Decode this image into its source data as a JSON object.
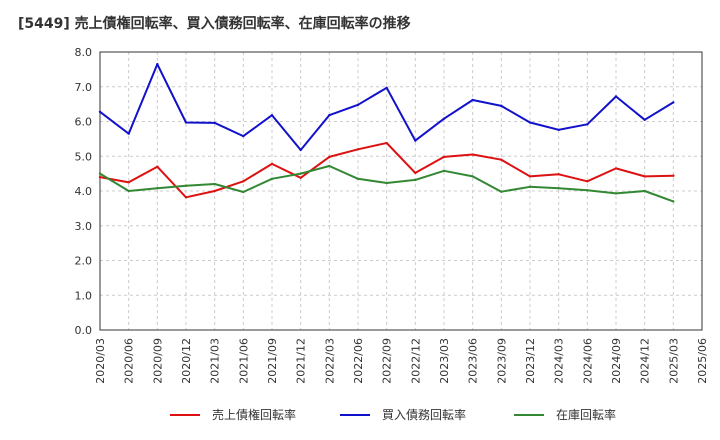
{
  "chart_data": {
    "type": "line",
    "title": "[5449]  売上債権回転率、買入債務回転率、在庫回転率の推移",
    "xlabel": "",
    "ylabel": "",
    "ylim": [
      0,
      8
    ],
    "yticks": [
      "0.0",
      "1.0",
      "2.0",
      "3.0",
      "4.0",
      "5.0",
      "6.0",
      "7.0",
      "8.0"
    ],
    "grid": true,
    "legend_position": "bottom",
    "x": [
      "2020/03",
      "2020/06",
      "2020/09",
      "2020/12",
      "2021/03",
      "2021/06",
      "2021/09",
      "2021/12",
      "2022/03",
      "2022/06",
      "2022/09",
      "2022/12",
      "2023/03",
      "2023/06",
      "2023/09",
      "2023/12",
      "2024/03",
      "2024/06",
      "2024/09",
      "2024/12",
      "2025/03",
      "2025/06"
    ],
    "series": [
      {
        "name": "売上債権回転率",
        "color": "#dd1111",
        "values": [
          4.4,
          4.25,
          4.7,
          3.82,
          4.0,
          4.28,
          4.78,
          4.38,
          4.98,
          5.2,
          5.38,
          4.52,
          4.98,
          5.05,
          4.9,
          4.42,
          4.48,
          4.28,
          4.65,
          4.42,
          4.44,
          null
        ]
      },
      {
        "name": "買入債務回転率",
        "color": "#1111cc",
        "values": [
          6.28,
          5.65,
          7.65,
          5.97,
          5.96,
          5.58,
          6.18,
          5.18,
          6.18,
          6.48,
          6.97,
          5.45,
          6.08,
          6.62,
          6.45,
          5.97,
          5.76,
          5.92,
          6.72,
          6.05,
          6.55,
          null
        ]
      },
      {
        "name": "在庫回転率",
        "color": "#338833",
        "values": [
          4.5,
          4.0,
          4.08,
          4.15,
          4.2,
          3.97,
          4.35,
          4.5,
          4.72,
          4.35,
          4.23,
          4.32,
          4.58,
          4.42,
          3.98,
          4.12,
          4.08,
          4.02,
          3.93,
          4.0,
          3.7,
          null
        ]
      }
    ]
  }
}
